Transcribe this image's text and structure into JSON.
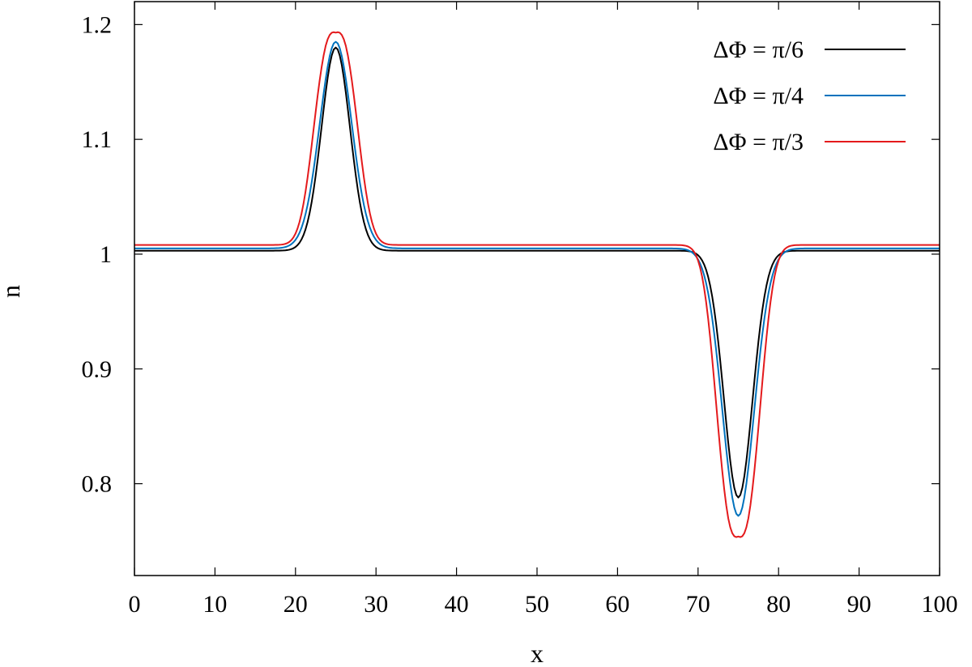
{
  "chart_data": {
    "type": "line",
    "title": "",
    "xlabel": "x",
    "ylabel": "n",
    "xlim": [
      0,
      100
    ],
    "ylim": [
      0.72,
      1.22
    ],
    "xticks": [
      0,
      10,
      20,
      30,
      40,
      50,
      60,
      70,
      80,
      90,
      100
    ],
    "xtick_labels": [
      "0",
      "10",
      "20",
      "30",
      "40",
      "50",
      "60",
      "70",
      "80",
      "90",
      "100"
    ],
    "yticks": [
      0.8,
      0.9,
      1.0,
      1.1,
      1.2
    ],
    "ytick_labels": [
      "0.8",
      "0.9",
      "1",
      "1.1",
      "1.2"
    ],
    "grid": false,
    "legend_position": "top-right",
    "series": [
      {
        "name": "ΔΦ = π/6",
        "color": "#000000",
        "baseline": 1.003,
        "bump_center": 25,
        "bump_peak": 1.18,
        "bump_width": 2.5,
        "dip_center": 75,
        "dip_min": 0.788,
        "dip_width": 2.5,
        "flat_top": false
      },
      {
        "name": "ΔΦ = π/4",
        "color": "#0072bd",
        "baseline": 1.005,
        "bump_center": 25,
        "bump_peak": 1.185,
        "bump_width": 2.8,
        "dip_center": 75,
        "dip_min": 0.772,
        "dip_width": 2.8,
        "flat_top": false
      },
      {
        "name": "ΔΦ = π/3",
        "color": "#e41a1c",
        "baseline": 1.008,
        "bump_center": 25,
        "bump_peak": 1.196,
        "bump_width": 3.3,
        "dip_center": 75,
        "dip_min": 0.75,
        "dip_width": 3.3,
        "flat_top": true
      }
    ]
  }
}
